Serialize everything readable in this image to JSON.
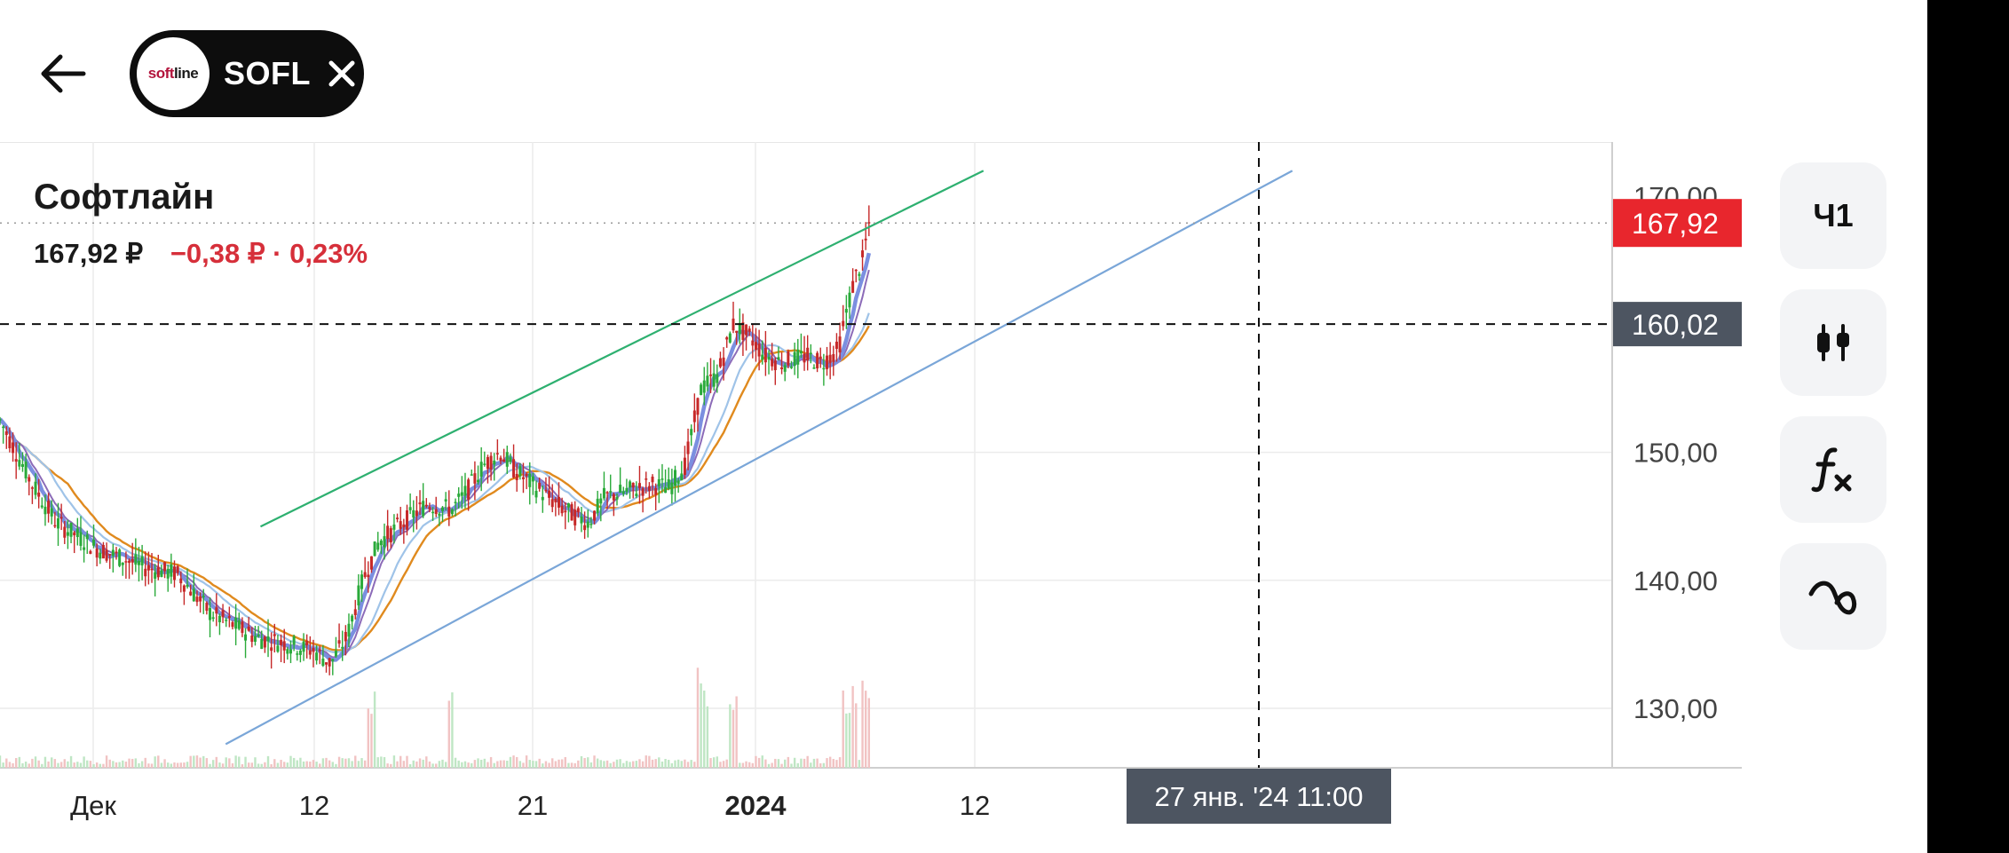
{
  "header": {
    "back_icon": "arrow-left-icon",
    "ticker": {
      "symbol": "SOFL",
      "logo_text_a": "soft",
      "logo_text_b": "line",
      "close_icon": "close-icon"
    }
  },
  "instrument": {
    "name": "Софтлайн",
    "price": "167,92 ₽",
    "change": "−0,38 ₽ · 0,23%"
  },
  "toolbar": {
    "interval_label": "Ч1",
    "items": [
      {
        "name": "interval-button",
        "label": "Ч1",
        "icon": ""
      },
      {
        "name": "chart-type-button",
        "label": "",
        "icon": "candlestick-icon"
      },
      {
        "name": "indicators-button",
        "label": "",
        "icon": "function-icon"
      },
      {
        "name": "drawing-tools-button",
        "label": "",
        "icon": "drawing-curve-icon"
      }
    ]
  },
  "colors": {
    "up": "#2aaa3a",
    "down": "#c62828",
    "trend_top": "#2eb070",
    "trend_bottom": "#7aa6d8",
    "ma_fast": "#7b8fe0",
    "ma_slow": "#e08a1e",
    "ma_mid": "#9fc3e8",
    "ma_purple": "#8c6bb8",
    "price_badge": "#e8262d",
    "crosshair_badge": "#4d5561"
  },
  "chart_data": {
    "type": "candlestick",
    "ylim": [
      125.5,
      170.5
    ],
    "y_ticks": [
      "170,00",
      "150,00",
      "140,00",
      "130,00"
    ],
    "x_ticks": [
      "Дек",
      "12",
      "21",
      "2024",
      "12"
    ],
    "current_price_label": "167,92",
    "crosshair_price_label": "160,02",
    "crosshair_time_label": "27 янв. '24  11:00",
    "current_price": 167.92,
    "crosshair_price": 160.02,
    "trendlines": [
      {
        "name": "upper-channel",
        "from": [
          0.1616,
          144.2
        ],
        "to": [
          0.61,
          172.0
        ]
      },
      {
        "name": "lower-channel",
        "from": [
          0.14,
          127.2
        ],
        "to": [
          0.8016,
          172.0
        ]
      }
    ],
    "anchors": [
      [
        0.0,
        152.5
      ],
      [
        0.01,
        150.0
      ],
      [
        0.02,
        147.5
      ],
      [
        0.035,
        144.5
      ],
      [
        0.06,
        142.5
      ],
      [
        0.09,
        141.0
      ],
      [
        0.11,
        140.5
      ],
      [
        0.12,
        139.0
      ],
      [
        0.13,
        137.5
      ],
      [
        0.145,
        136.5
      ],
      [
        0.16,
        135.5
      ],
      [
        0.18,
        135.0
      ],
      [
        0.195,
        134.5
      ],
      [
        0.205,
        133.5
      ],
      [
        0.215,
        135.5
      ],
      [
        0.225,
        140.0
      ],
      [
        0.235,
        143.0
      ],
      [
        0.25,
        144.5
      ],
      [
        0.265,
        146.0
      ],
      [
        0.28,
        145.5
      ],
      [
        0.29,
        147.0
      ],
      [
        0.3,
        149.0
      ],
      [
        0.31,
        150.0
      ],
      [
        0.32,
        148.5
      ],
      [
        0.335,
        147.0
      ],
      [
        0.35,
        145.5
      ],
      [
        0.365,
        144.5
      ],
      [
        0.375,
        146.5
      ],
      [
        0.39,
        147.0
      ],
      [
        0.405,
        147.5
      ],
      [
        0.415,
        147.2
      ],
      [
        0.425,
        149.0
      ],
      [
        0.435,
        155.0
      ],
      [
        0.445,
        156.0
      ],
      [
        0.455,
        160.0
      ],
      [
        0.465,
        159.0
      ],
      [
        0.475,
        157.5
      ],
      [
        0.485,
        157.0
      ],
      [
        0.5,
        157.5
      ],
      [
        0.51,
        157.0
      ],
      [
        0.52,
        158.0
      ],
      [
        0.525,
        161.0
      ],
      [
        0.53,
        163.5
      ],
      [
        0.535,
        165.0
      ],
      [
        0.539,
        167.9
      ]
    ],
    "volume_spikes": [
      0.23,
      0.28,
      0.434,
      0.438,
      0.455,
      0.525,
      0.53,
      0.537
    ]
  }
}
